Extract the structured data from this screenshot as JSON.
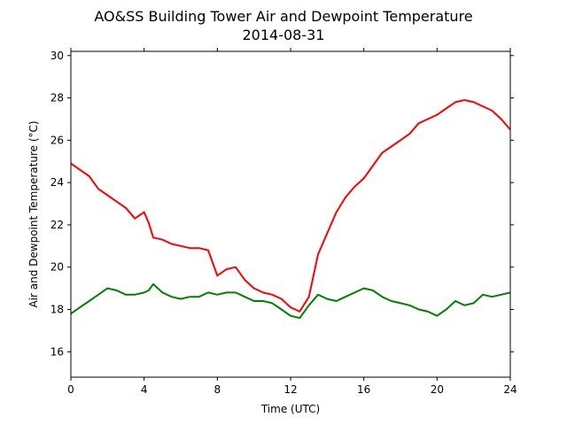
{
  "chart_data": {
    "type": "line",
    "title": "AO&SS Building Tower Air and Dewpoint Temperature",
    "subtitle": "2014-08-31",
    "xlabel": "Time (UTC)",
    "ylabel": "Air and Dewpoint Temperature (°C)",
    "xlim": [
      0,
      24
    ],
    "ylim": [
      14.8,
      30.2
    ],
    "xticks": [
      0,
      4,
      8,
      12,
      16,
      20,
      24
    ],
    "yticks": [
      16,
      18,
      20,
      22,
      24,
      26,
      28,
      30
    ],
    "grid": false,
    "series": [
      {
        "color": "#ff0000",
        "x": [
          0,
          0.5,
          1.0,
          1.5,
          2.0,
          2.5,
          3.0,
          3.5,
          4.0,
          4.25,
          4.5,
          5.0,
          5.5,
          6.0,
          6.5,
          7.0,
          7.5,
          8.0,
          8.5,
          9.0,
          9.5,
          10.0,
          10.5,
          11.0,
          11.5,
          12.0,
          12.5,
          13.0,
          13.5,
          14.0,
          14.5,
          15.0,
          15.5,
          16.0,
          16.5,
          17.0,
          17.5,
          18.0,
          18.5,
          19.0,
          19.5,
          20.0,
          20.5,
          21.0,
          21.5,
          22.0,
          22.5,
          23.0,
          23.5,
          24.0
        ],
        "y": [
          24.9,
          24.6,
          24.3,
          23.7,
          23.4,
          23.1,
          22.8,
          22.3,
          22.6,
          22.1,
          21.4,
          21.3,
          21.1,
          21.0,
          20.9,
          20.9,
          20.8,
          19.6,
          19.9,
          20.0,
          19.4,
          19.0,
          18.8,
          18.7,
          18.5,
          18.1,
          17.9,
          18.6,
          20.6,
          21.6,
          22.6,
          23.3,
          23.8,
          24.2,
          24.8,
          25.4,
          25.7,
          26.0,
          26.3,
          26.8,
          27.0,
          27.2,
          27.5,
          27.8,
          27.9,
          27.8,
          27.6,
          27.4,
          27.0,
          26.5
        ]
      },
      {
        "color": "#008000",
        "x": [
          0,
          0.5,
          1.0,
          1.5,
          2.0,
          2.5,
          3.0,
          3.5,
          4.0,
          4.25,
          4.5,
          5.0,
          5.5,
          6.0,
          6.5,
          7.0,
          7.5,
          8.0,
          8.5,
          9.0,
          9.5,
          10.0,
          10.5,
          11.0,
          11.5,
          12.0,
          12.5,
          13.0,
          13.5,
          14.0,
          14.5,
          15.0,
          15.5,
          16.0,
          16.5,
          17.0,
          17.5,
          18.0,
          18.5,
          19.0,
          19.5,
          20.0,
          20.5,
          21.0,
          21.5,
          22.0,
          22.5,
          23.0,
          23.5,
          24.0
        ],
        "y": [
          17.8,
          18.1,
          18.4,
          18.7,
          19.0,
          18.9,
          18.7,
          18.7,
          18.8,
          18.9,
          19.2,
          18.8,
          18.6,
          18.5,
          18.6,
          18.6,
          18.8,
          18.7,
          18.8,
          18.8,
          18.6,
          18.4,
          18.4,
          18.3,
          18.0,
          17.7,
          17.6,
          18.2,
          18.7,
          18.5,
          18.4,
          18.6,
          18.8,
          19.0,
          18.9,
          18.6,
          18.4,
          18.3,
          18.2,
          18.0,
          17.9,
          17.7,
          18.0,
          18.4,
          18.2,
          18.3,
          18.7,
          18.6,
          18.7,
          18.8
        ]
      }
    ]
  }
}
